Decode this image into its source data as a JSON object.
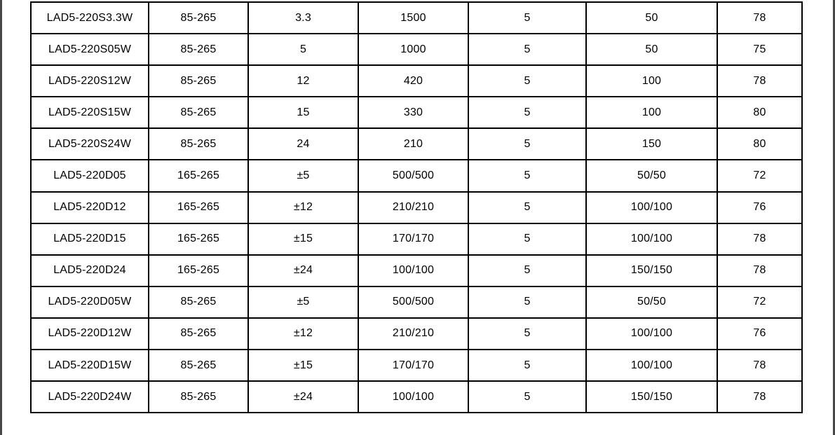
{
  "page": {
    "background_color": "#ffffff",
    "edge_color": "#474747",
    "text_color": "#000000",
    "table_border_color": "#000000"
  },
  "table": {
    "columns_semantic": [
      "model",
      "input-voltage-range",
      "output-voltage",
      "output-current",
      "load-regulation",
      "ripple-noise",
      "efficiency"
    ],
    "rows": [
      [
        "LAD5-220S3.3W",
        "85-265",
        "3.3",
        "1500",
        "5",
        "50",
        "78"
      ],
      [
        "LAD5-220S05W",
        "85-265",
        "5",
        "1000",
        "5",
        "50",
        "75"
      ],
      [
        "LAD5-220S12W",
        "85-265",
        "12",
        "420",
        "5",
        "100",
        "78"
      ],
      [
        "LAD5-220S15W",
        "85-265",
        "15",
        "330",
        "5",
        "100",
        "80"
      ],
      [
        "LAD5-220S24W",
        "85-265",
        "24",
        "210",
        "5",
        "150",
        "80"
      ],
      [
        "LAD5-220D05",
        "165-265",
        "±5",
        "500/500",
        "5",
        "50/50",
        "72"
      ],
      [
        "LAD5-220D12",
        "165-265",
        "±12",
        "210/210",
        "5",
        "100/100",
        "76"
      ],
      [
        "LAD5-220D15",
        "165-265",
        "±15",
        "170/170",
        "5",
        "100/100",
        "78"
      ],
      [
        "LAD5-220D24",
        "165-265",
        "±24",
        "100/100",
        "5",
        "150/150",
        "78"
      ],
      [
        "LAD5-220D05W",
        "85-265",
        "±5",
        "500/500",
        "5",
        "50/50",
        "72"
      ],
      [
        "LAD5-220D12W",
        "85-265",
        "±12",
        "210/210",
        "5",
        "100/100",
        "76"
      ],
      [
        "LAD5-220D15W",
        "85-265",
        "±15",
        "170/170",
        "5",
        "100/100",
        "78"
      ],
      [
        "LAD5-220D24W",
        "85-265",
        "±24",
        "100/100",
        "5",
        "150/150",
        "78"
      ]
    ]
  }
}
